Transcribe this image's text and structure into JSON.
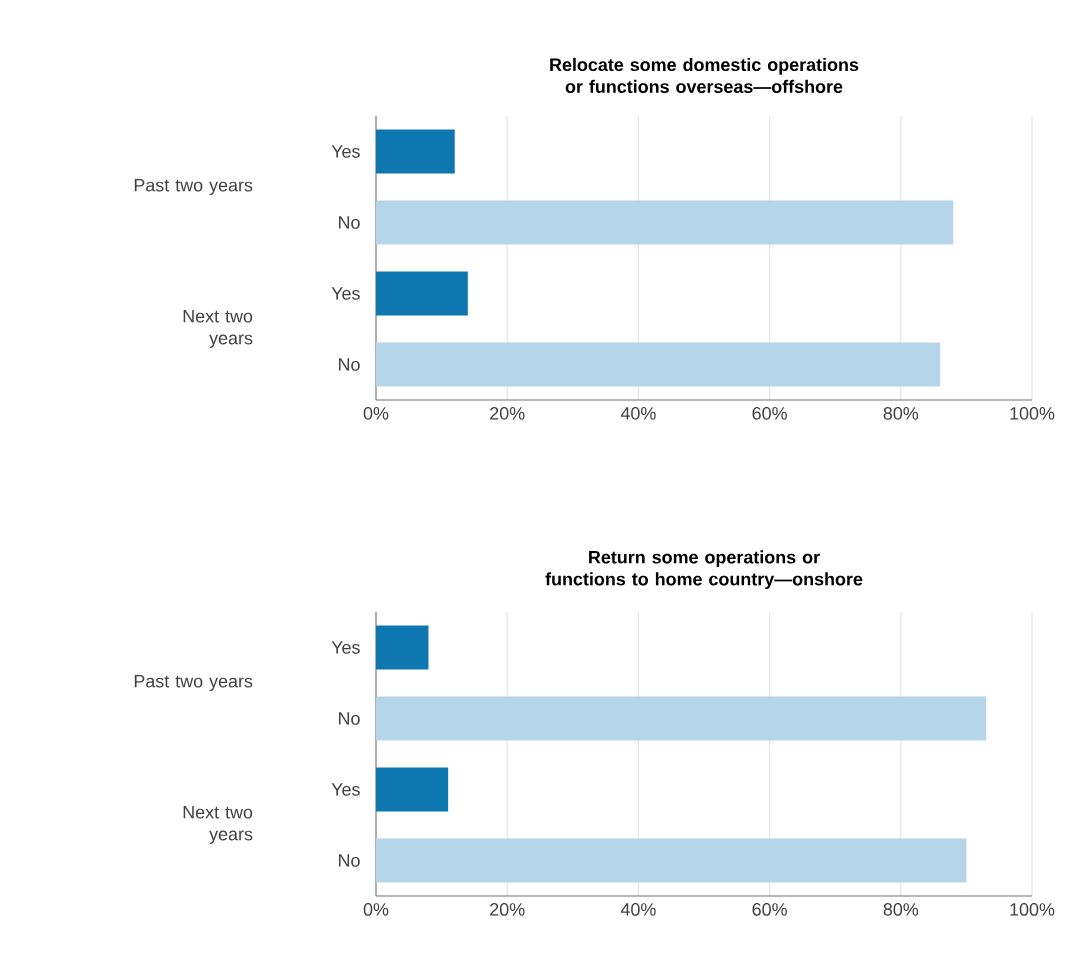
{
  "chart_data": [
    {
      "type": "bar",
      "orientation": "horizontal",
      "title": "Relocate some domestic operations or functions overseas—offshore",
      "categories": [
        "Yes",
        "No",
        "Yes",
        "No"
      ],
      "values": [
        12,
        88,
        14,
        86
      ],
      "colors": [
        "#0f77b0",
        "#b5d6ea",
        "#0f77b0",
        "#b5d6ea"
      ],
      "xlim": [
        0,
        100
      ],
      "xticks": [
        {
          "value": 0,
          "label": "0%"
        },
        {
          "value": 20,
          "label": "20%"
        },
        {
          "value": 40,
          "label": "40%"
        },
        {
          "value": 60,
          "label": "60%"
        },
        {
          "value": 80,
          "label": "80%"
        },
        {
          "value": 100,
          "label": "100%"
        }
      ],
      "grid": "x",
      "annotations": [
        "Past two years",
        "Next two years"
      ]
    },
    {
      "type": "bar",
      "orientation": "horizontal",
      "title": "Return some operations or functions to home country—onshore",
      "categories": [
        "Yes",
        "No",
        "Yes",
        "No"
      ],
      "values": [
        8,
        93,
        11,
        90
      ],
      "colors": [
        "#0f77b0",
        "#b5d6ea",
        "#0f77b0",
        "#b5d6ea"
      ],
      "xlim": [
        0,
        100
      ],
      "xticks": [
        {
          "value": 0,
          "label": "0%"
        },
        {
          "value": 20,
          "label": "20%"
        },
        {
          "value": 40,
          "label": "40%"
        },
        {
          "value": 60,
          "label": "60%"
        },
        {
          "value": 80,
          "label": "80%"
        },
        {
          "value": 100,
          "label": "100%"
        }
      ],
      "grid": "x",
      "annotations": [
        "Past two years",
        "Next two years"
      ]
    }
  ]
}
